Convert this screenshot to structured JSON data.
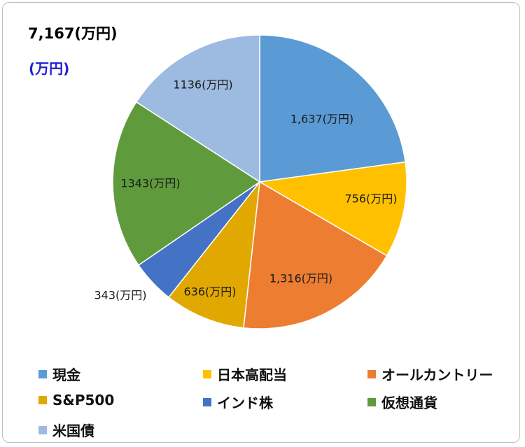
{
  "header": {
    "total": "7,167(万円)",
    "unit": "(万円)"
  },
  "chart_data": {
    "type": "pie",
    "categories": [
      "現金",
      "日本高配当",
      "オールカントリー",
      "S&P500",
      "インド株",
      "仮想通貨",
      "米国債"
    ],
    "values": [
      1637,
      756,
      1316,
      636,
      343,
      1343,
      1136
    ],
    "labels": [
      "1,637(万円)",
      "756(万円)",
      "1,316(万円)",
      "636(万円)",
      "343(万円)",
      "1343(万円)",
      "1136(万円)"
    ],
    "colors": [
      "#5b9bd5",
      "#ffc000",
      "#ed7d31",
      "#e0a800",
      "#4472c4",
      "#5f9b3c",
      "#9dbbe0"
    ],
    "legend_position": "bottom"
  }
}
